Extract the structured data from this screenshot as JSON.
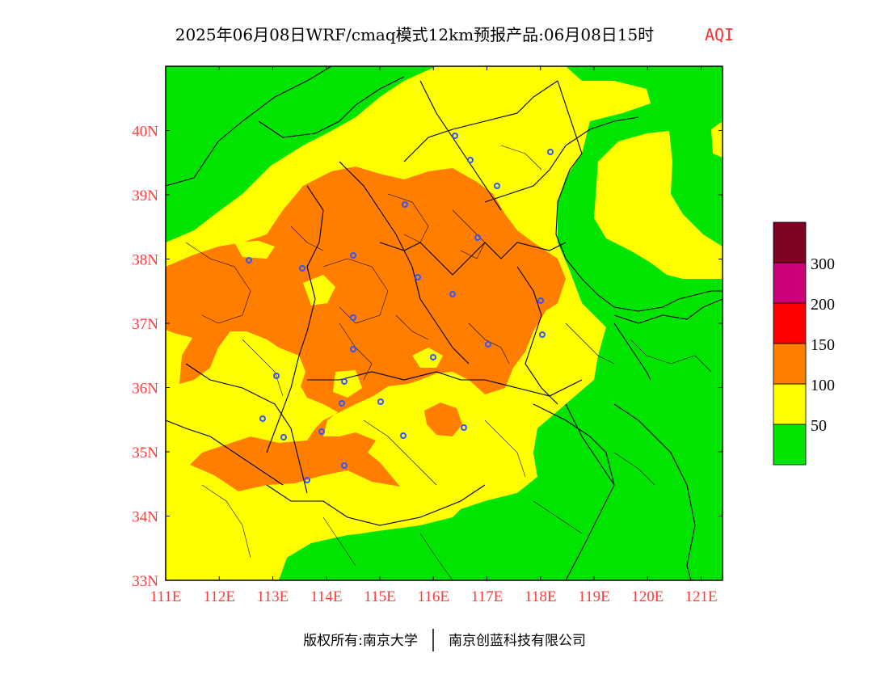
{
  "title": {
    "main": "2025年06月08日WRF/cmaq模式12km预报产品:06月08日15时",
    "product": "AQI"
  },
  "map": {
    "lon_range": [
      111,
      121.4
    ],
    "lat_range": [
      33,
      41
    ],
    "x_ticks": [
      "111E",
      "112E",
      "113E",
      "114E",
      "115E",
      "116E",
      "117E",
      "118E",
      "119E",
      "120E",
      "121E"
    ],
    "y_ticks": [
      "33N",
      "34N",
      "35N",
      "36N",
      "37N",
      "38N",
      "39N",
      "40N"
    ],
    "colors": {
      "good": "#00e400",
      "moderate": "#ffff00",
      "usg": "#ff7e00",
      "unhealthy": "#ff0000",
      "very_unhealthy": "#cc0077",
      "hazardous": "#7e0023",
      "station": "#3355ff",
      "tick_label": "#ff3b3b"
    }
  },
  "legend": {
    "labels": [
      "50",
      "100",
      "150",
      "200",
      "300"
    ],
    "colors": [
      "#00e400",
      "#ffff00",
      "#ff7e00",
      "#ff0000",
      "#cc0077",
      "#7e0023"
    ]
  },
  "footer": {
    "copyright": "版权所有:南京大学",
    "company": "南京创蓝科技有限公司"
  }
}
